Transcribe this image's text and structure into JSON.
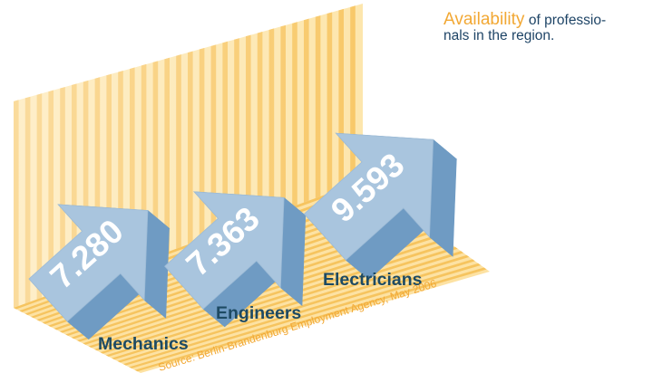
{
  "title": {
    "highlight": "Availability",
    "rest_line1": "of professio-",
    "rest_line2": "nals in the region."
  },
  "source": "Source: Berlin-Brandenburg Employment Agency, May 2006",
  "colors": {
    "wall_stripe": "#f8c868",
    "wall_light": "#fde6ad",
    "floor_stripe": "#f6c45f",
    "arrow_top": "#a9c5de",
    "arrow_side": "#c6d7e7",
    "arrow_shadow": "#6f9bc3",
    "label_dark": "#1d4a63",
    "accent": "#f2a834"
  },
  "chart_data": {
    "type": "bar",
    "style": "3d-arrows",
    "categories": [
      "Mechanics",
      "Engineers",
      "Electricians"
    ],
    "values": [
      7280,
      7363,
      9593
    ],
    "value_labels": [
      "7.280",
      "7.363",
      "9.593"
    ],
    "title": "Availability of professionals in the region.",
    "xlabel": "",
    "ylabel": "",
    "grid": false,
    "legend": "none"
  }
}
